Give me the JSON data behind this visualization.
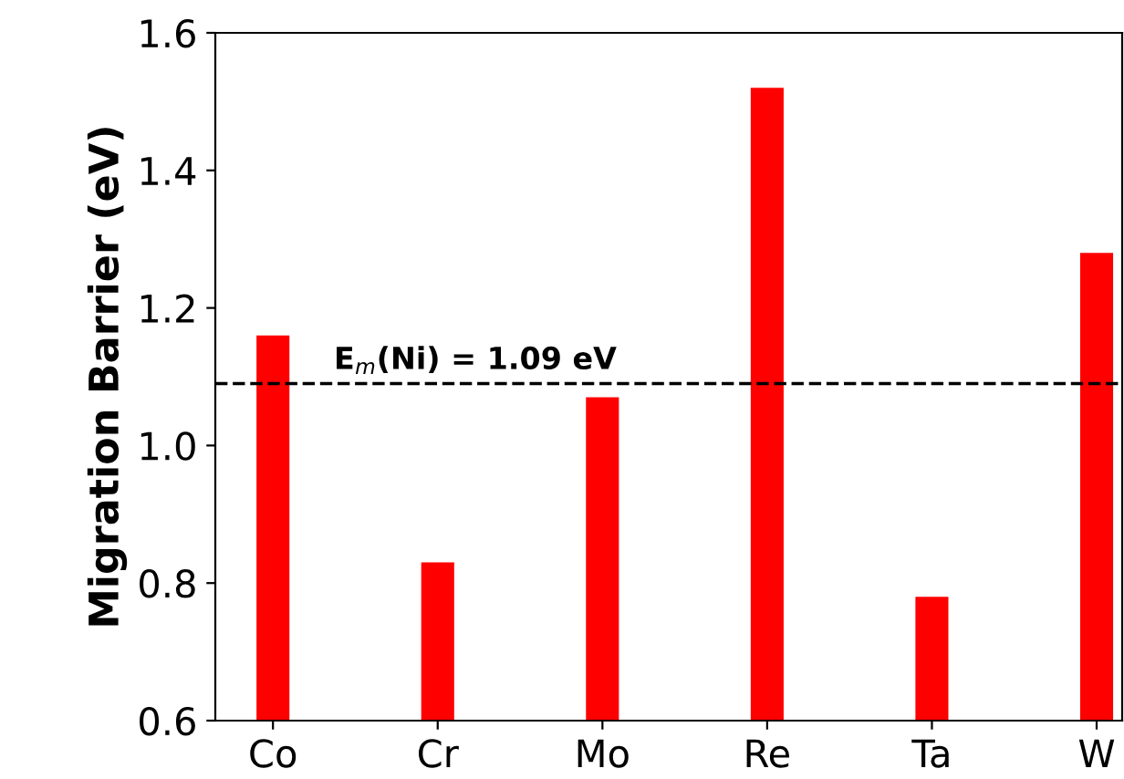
{
  "chart_data": {
    "type": "bar",
    "ylabel": "Migration Barrier (eV)",
    "categories": [
      "Co",
      "Cr",
      "Mo",
      "Re",
      "Ta",
      "W"
    ],
    "values": [
      1.16,
      0.83,
      1.07,
      1.52,
      0.78,
      1.28
    ],
    "color": "#ff0000",
    "ylim": [
      0.6,
      1.6
    ],
    "yticks": [
      0.6,
      0.8,
      {
        "value": 1.0,
        "label": "1.0"
      },
      1.2,
      1.4,
      1.6
    ],
    "grid": false,
    "ref_lines": [
      {
        "axis": "y",
        "value": 1.09,
        "label": "E$_{m}$(Ni) = 1.09 eV",
        "color": "#000000",
        "line_style": "dashed"
      }
    ]
  }
}
